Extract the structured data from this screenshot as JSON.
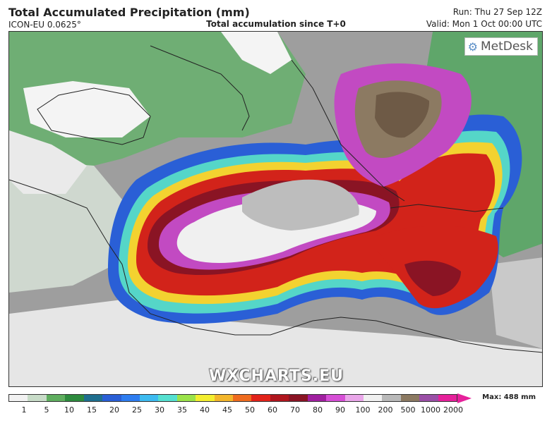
{
  "header": {
    "title": "Total Accumulated Precipitation (mm)",
    "model": "ICON-EU 0.0625°",
    "subtitle": "Total accumulation since T+0",
    "run": "Run: Thu 27 Sep 12Z",
    "valid": "Valid: Mon 1 Oct 00:00 UTC"
  },
  "map": {
    "logo_text": "MetDesk",
    "logo_icon": "metdesk-globe-icon",
    "watermark": "WXCHARTS.EU"
  },
  "legend": {
    "ticks": [
      "1",
      "5",
      "10",
      "15",
      "20",
      "25",
      "30",
      "35",
      "40",
      "45",
      "50",
      "60",
      "70",
      "80",
      "90",
      "100",
      "200",
      "500",
      "1000",
      "2000"
    ],
    "max_label": "Max: 488 mm",
    "colors": [
      "#f2f2f2",
      "#c8dcc8",
      "#5fae5f",
      "#2e8b3e",
      "#1f6f8f",
      "#2a5fd6",
      "#2e7df0",
      "#3dbbf0",
      "#55e0d0",
      "#9be34a",
      "#f3ee30",
      "#f3b62c",
      "#ef6c1f",
      "#e2231a",
      "#b0161e",
      "#8a1424",
      "#a020a0",
      "#d64fd6",
      "#e9a6e9",
      "#f0f0f0",
      "#b9b9b9",
      "#8c7a62",
      "#9a4fa6",
      "#e6219b"
    ]
  }
}
